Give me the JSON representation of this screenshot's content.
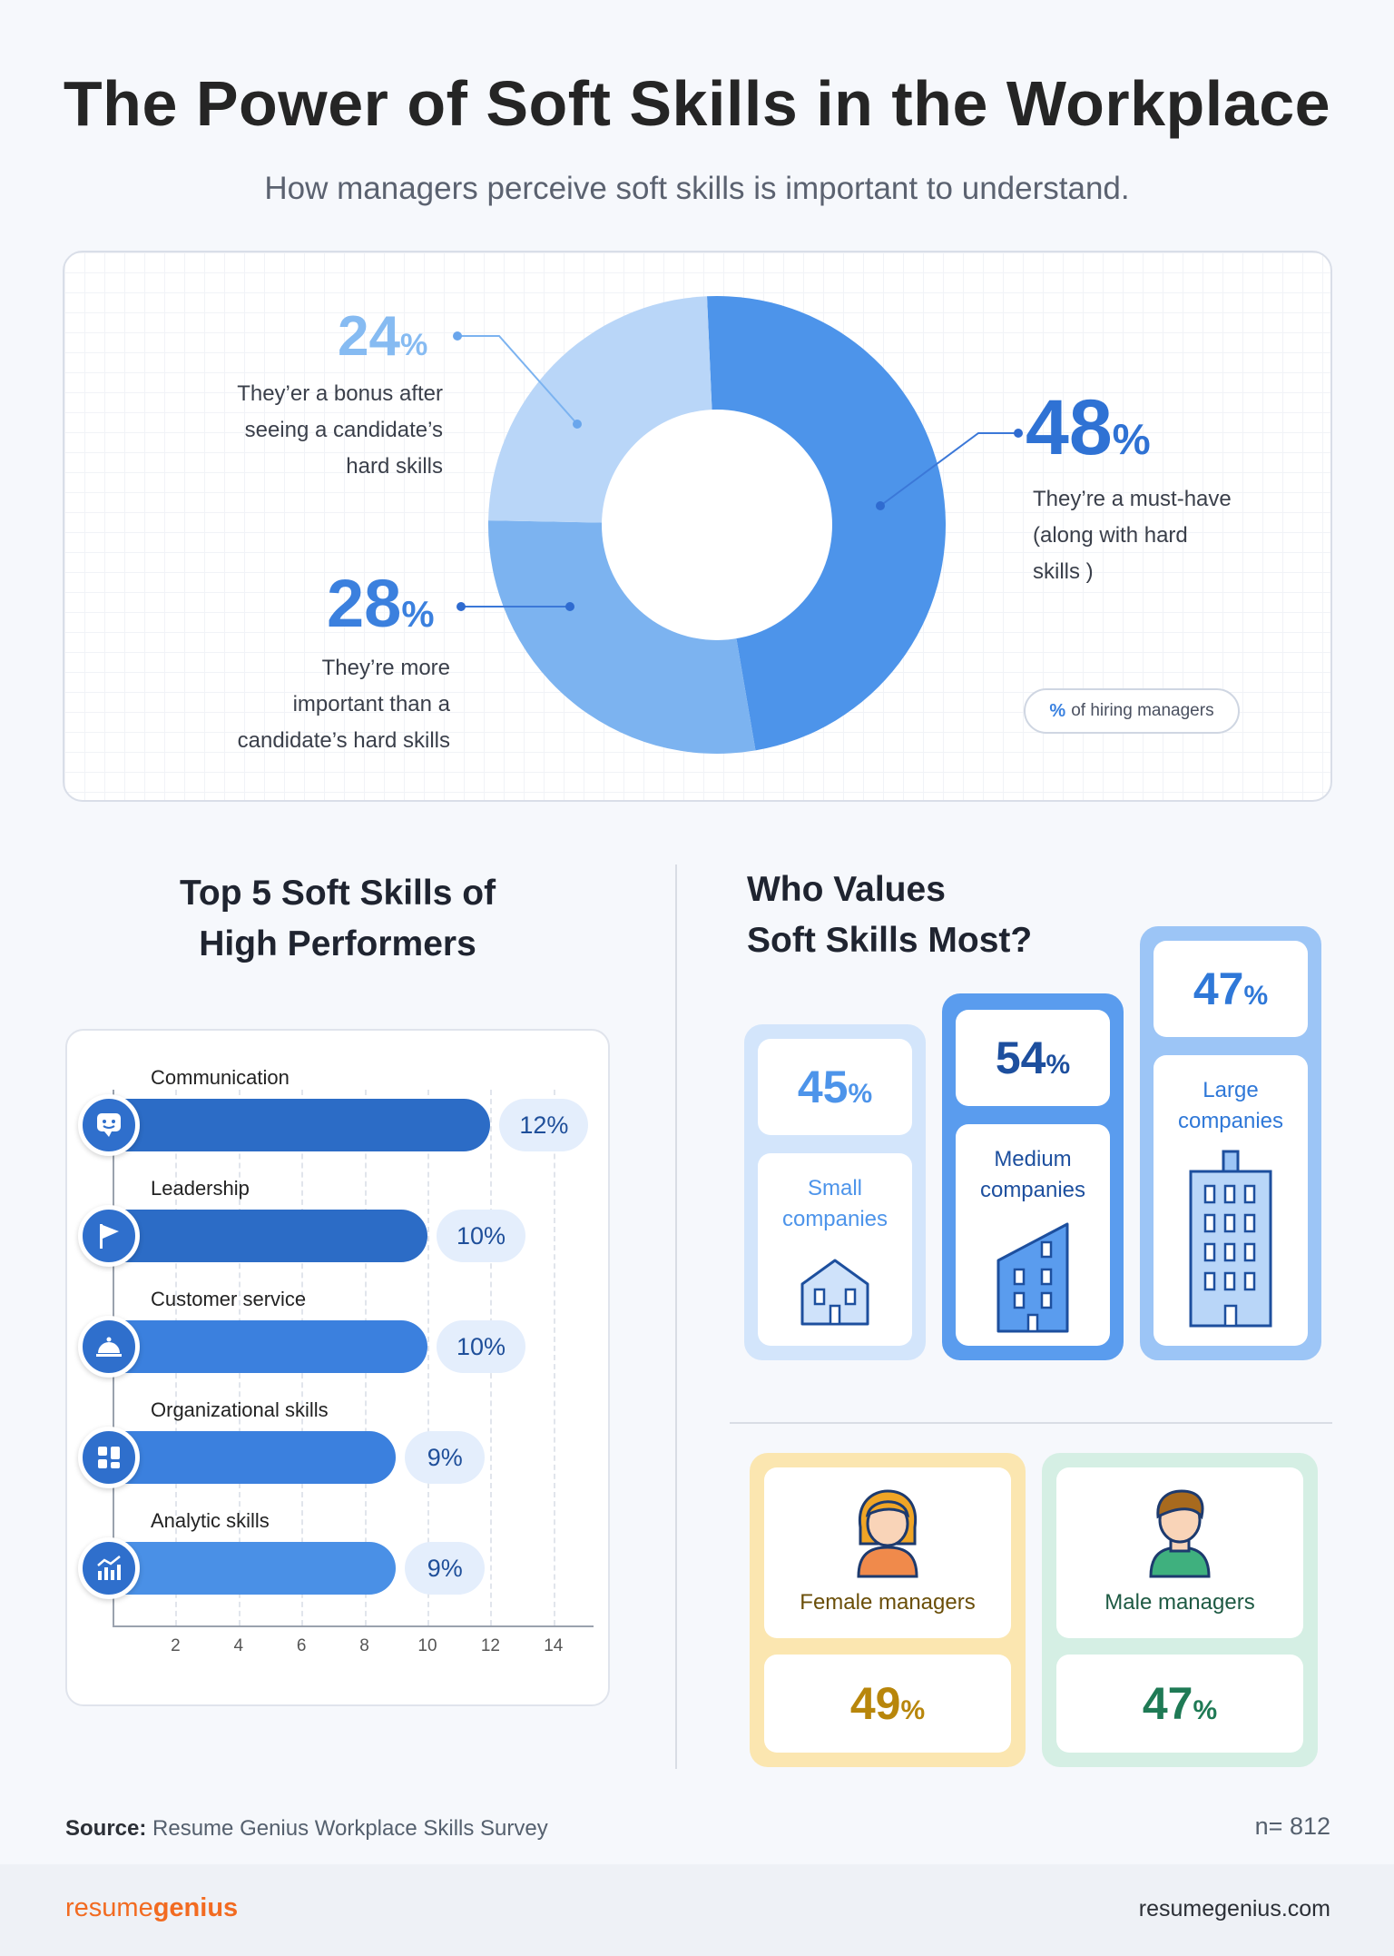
{
  "header": {
    "title": "The Power of Soft Skills in the Workplace",
    "subtitle": "How managers perceive soft skills is important to understand."
  },
  "donut": {
    "legend_symbol": "%",
    "legend_text": "of hiring managers",
    "slices": [
      {
        "value": "48",
        "desc_lines": [
          "They’re a must-have",
          "(along with hard",
          "skills )"
        ],
        "color": "#4d94ea"
      },
      {
        "value": "28",
        "desc_lines": [
          "They’re more",
          "important than a",
          "candidate’s hard skills"
        ],
        "color": "#7cb3f0"
      },
      {
        "value": "24",
        "desc_lines": [
          "They’er a bonus after",
          "seeing a candidate’s",
          "hard skills"
        ],
        "color": "#b9d6f8"
      }
    ],
    "percent_sign": "%"
  },
  "chart_data": [
    {
      "type": "pie",
      "title": "",
      "categories": [
        "They’re a must-have (along with hard skills )",
        "They’re more important than a candidate’s hard skills",
        "They’er a bonus after seeing a candidate’s hard skills"
      ],
      "values": [
        48,
        28,
        24
      ],
      "legend": "% of hiring managers"
    },
    {
      "type": "bar",
      "title": "Top 5 Soft Skills of High Performers",
      "categories": [
        "Communication",
        "Leadership",
        "Customer service",
        "Organizational skills",
        "Analytic skills"
      ],
      "values": [
        12,
        10,
        10,
        9,
        9
      ],
      "xlim": [
        0,
        15
      ],
      "xticks": [
        2,
        4,
        6,
        8,
        10,
        12,
        14
      ],
      "grid": true
    },
    {
      "type": "bar",
      "title": "Who Values Soft Skills Most?",
      "categories": [
        "Small companies",
        "Medium companies",
        "Large companies",
        "Female managers",
        "Male managers"
      ],
      "values": [
        45,
        54,
        47,
        49,
        47
      ]
    }
  ],
  "skills": {
    "title_lines": [
      "Top 5 Soft Skills of",
      "High Performers"
    ],
    "items": [
      {
        "label": "Communication",
        "value": 12,
        "value_text": "12%",
        "color": "#2c6cc6",
        "icon": "chat-icon"
      },
      {
        "label": "Leadership",
        "value": 10,
        "value_text": "10%",
        "color": "#2c6cc6",
        "icon": "flag-icon"
      },
      {
        "label": "Customer service",
        "value": 10,
        "value_text": "10%",
        "color": "#3b80de",
        "icon": "service-bell-icon"
      },
      {
        "label": "Organizational skills",
        "value": 9,
        "value_text": "9%",
        "color": "#3b80de",
        "icon": "organize-icon"
      },
      {
        "label": "Analytic skills",
        "value": 9,
        "value_text": "9%",
        "color": "#4a90e6",
        "icon": "analytics-icon"
      }
    ],
    "ticks": [
      "2",
      "4",
      "6",
      "8",
      "10",
      "12",
      "14"
    ]
  },
  "who_values": {
    "title_lines": [
      "Who Values",
      "Soft Skills Most?"
    ],
    "companies": [
      {
        "pct": "45",
        "label_lines": [
          "Small",
          "companies"
        ],
        "color": "#4d94ea",
        "frame": "#d3e5fb"
      },
      {
        "pct": "54",
        "label_lines": [
          "Medium",
          "companies"
        ],
        "color": "#1d4f9e",
        "frame": "#5a9cee"
      },
      {
        "pct": "47",
        "label_lines": [
          "Large",
          "companies"
        ],
        "color": "#2f78d8",
        "frame": "#9cc5f6"
      }
    ],
    "managers": [
      {
        "label": "Female managers",
        "pct": "49",
        "color": "#b8860b",
        "label_color": "#6a4e08",
        "frame": "#fbe6b0"
      },
      {
        "label": "Male managers",
        "pct": "47",
        "color": "#1f7a55",
        "label_color": "#1e5a43",
        "frame": "#d5efe4"
      }
    ]
  },
  "footer": {
    "source_label": "Source:",
    "source_text": "Resume Genius Workplace Skills Survey",
    "n_text": "n= 812",
    "brand_1": "resume",
    "brand_2": "genius",
    "site": "resumegenius.com"
  }
}
